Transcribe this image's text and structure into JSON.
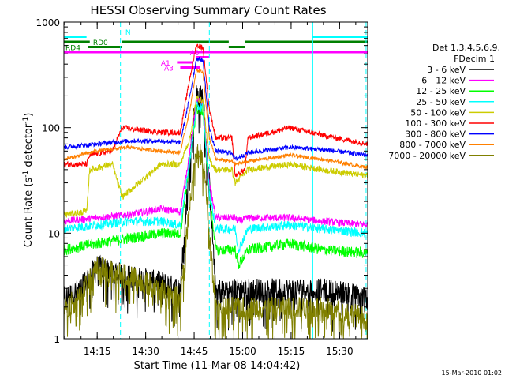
{
  "chart_data": {
    "type": "line",
    "title": "HESSI Observing Summary Count Rates",
    "xlabel": "Start Time (11-Mar-08 14:04:42)",
    "ylabel_main": "Count Rate (s",
    "ylabel_sup1": "-1",
    "ylabel_mid": " detector",
    "ylabel_sup2": "-1",
    "ylabel_end": ")",
    "y_scale": "log",
    "ylim": [
      1,
      1000
    ],
    "xlim_minutes": [
      0,
      94
    ],
    "y_ticks": [
      {
        "value": 1,
        "label": "1"
      },
      {
        "value": 10,
        "label": "10"
      },
      {
        "value": 100,
        "label": "100"
      },
      {
        "value": 1000,
        "label": "1000"
      }
    ],
    "x_ticks": [
      {
        "minute": 10.3,
        "label": "14:15"
      },
      {
        "minute": 25.3,
        "label": "14:30"
      },
      {
        "minute": 40.3,
        "label": "14:45"
      },
      {
        "minute": 55.3,
        "label": "15:00"
      },
      {
        "minute": 70.3,
        "label": "15:15"
      },
      {
        "minute": 85.3,
        "label": "15:30"
      }
    ],
    "legend": {
      "placement": "right",
      "header1": "Det 1,3,4,5,6,9,",
      "header2": "FDecim 1",
      "entries": [
        {
          "label": "3 - 6 keV",
          "color": "#000000"
        },
        {
          "label": "6 - 12 keV",
          "color": "#ff00ff"
        },
        {
          "label": "12 - 25 keV",
          "color": "#00ff00"
        },
        {
          "label": "25 - 50 keV",
          "color": "#00ffff"
        },
        {
          "label": "50 - 100 keV",
          "color": "#cccc00"
        },
        {
          "label": "100 - 300 keV",
          "color": "#ff0000"
        },
        {
          "label": "300 - 800 keV",
          "color": "#0000ff"
        },
        {
          "label": "800 - 7000 keV",
          "color": "#ff8000"
        },
        {
          "label": "7000 - 20000 keV",
          "color": "#808000"
        }
      ]
    },
    "series": [
      {
        "label": "3 - 6 keV",
        "color": "#000000",
        "noise": 0.5,
        "points": [
          [
            0,
            2.5
          ],
          [
            5,
            3
          ],
          [
            10,
            5
          ],
          [
            20,
            4
          ],
          [
            30,
            3.5
          ],
          [
            36,
            3
          ],
          [
            39,
            60
          ],
          [
            41,
            210
          ],
          [
            43,
            200
          ],
          [
            45,
            30
          ],
          [
            47,
            3
          ],
          [
            52,
            3
          ],
          [
            57,
            3
          ],
          [
            62,
            3
          ],
          [
            70,
            3
          ],
          [
            80,
            3
          ],
          [
            88,
            2.8
          ],
          [
            94,
            2.5
          ]
        ]
      },
      {
        "label": "6 - 12 keV",
        "color": "#ff00ff",
        "noise": 0.08,
        "points": [
          [
            0,
            13
          ],
          [
            10,
            14
          ],
          [
            20,
            15
          ],
          [
            30,
            17
          ],
          [
            36,
            16
          ],
          [
            39,
            60
          ],
          [
            41,
            180
          ],
          [
            43,
            175
          ],
          [
            45,
            30
          ],
          [
            47,
            14
          ],
          [
            53,
            14
          ],
          [
            54,
            13
          ],
          [
            57,
            14
          ],
          [
            70,
            14
          ],
          [
            80,
            13
          ],
          [
            94,
            12
          ]
        ]
      },
      {
        "label": "12 - 25 keV",
        "color": "#00ff00",
        "noise": 0.12,
        "points": [
          [
            0,
            7
          ],
          [
            10,
            8
          ],
          [
            20,
            9
          ],
          [
            30,
            10
          ],
          [
            36,
            10
          ],
          [
            39,
            50
          ],
          [
            41,
            150
          ],
          [
            43,
            145
          ],
          [
            45,
            25
          ],
          [
            47,
            7
          ],
          [
            53,
            7
          ],
          [
            54,
            5
          ],
          [
            57,
            7
          ],
          [
            70,
            8
          ],
          [
            80,
            7
          ],
          [
            94,
            6.5
          ]
        ]
      },
      {
        "label": "25 - 50 keV",
        "color": "#00ffff",
        "noise": 0.1,
        "points": [
          [
            0,
            11
          ],
          [
            10,
            12
          ],
          [
            20,
            13
          ],
          [
            30,
            13
          ],
          [
            36,
            12
          ],
          [
            39,
            50
          ],
          [
            41,
            160
          ],
          [
            43,
            155
          ],
          [
            45,
            25
          ],
          [
            47,
            11
          ],
          [
            53,
            11
          ],
          [
            54,
            7
          ],
          [
            57,
            11
          ],
          [
            70,
            12
          ],
          [
            80,
            11
          ],
          [
            94,
            10
          ]
        ]
      },
      {
        "label": "50 - 100 keV",
        "color": "#cccc00",
        "noise": 0.07,
        "points": [
          [
            0,
            15
          ],
          [
            7,
            16
          ],
          [
            8,
            40
          ],
          [
            15,
            45
          ],
          [
            18,
            22
          ],
          [
            30,
            45
          ],
          [
            36,
            45
          ],
          [
            39,
            80
          ],
          [
            41,
            190
          ],
          [
            43,
            180
          ],
          [
            45,
            50
          ],
          [
            47,
            40
          ],
          [
            52,
            40
          ],
          [
            53,
            30
          ],
          [
            57,
            40
          ],
          [
            70,
            45
          ],
          [
            80,
            40
          ],
          [
            94,
            35
          ]
        ]
      },
      {
        "label": "100 - 300 keV",
        "color": "#ff0000",
        "noise": 0.06,
        "points": [
          [
            0,
            45
          ],
          [
            7,
            45
          ],
          [
            8,
            55
          ],
          [
            15,
            60
          ],
          [
            18,
            100
          ],
          [
            30,
            90
          ],
          [
            36,
            90
          ],
          [
            39,
            300
          ],
          [
            41,
            600
          ],
          [
            43,
            580
          ],
          [
            45,
            150
          ],
          [
            47,
            80
          ],
          [
            52,
            80
          ],
          [
            53,
            35
          ],
          [
            56,
            40
          ],
          [
            57,
            80
          ],
          [
            70,
            100
          ],
          [
            80,
            85
          ],
          [
            94,
            70
          ]
        ]
      },
      {
        "label": "300 - 800 keV",
        "color": "#0000ff",
        "noise": 0.05,
        "points": [
          [
            0,
            65
          ],
          [
            10,
            70
          ],
          [
            20,
            75
          ],
          [
            30,
            75
          ],
          [
            36,
            72
          ],
          [
            39,
            200
          ],
          [
            41,
            450
          ],
          [
            43,
            440
          ],
          [
            45,
            100
          ],
          [
            47,
            60
          ],
          [
            52,
            58
          ],
          [
            53,
            50
          ],
          [
            57,
            58
          ],
          [
            70,
            65
          ],
          [
            80,
            62
          ],
          [
            94,
            55
          ]
        ]
      },
      {
        "label": "800 - 7000 keV",
        "color": "#ff8000",
        "noise": 0.04,
        "points": [
          [
            0,
            50
          ],
          [
            10,
            60
          ],
          [
            20,
            65
          ],
          [
            30,
            60
          ],
          [
            36,
            58
          ],
          [
            39,
            150
          ],
          [
            41,
            350
          ],
          [
            43,
            340
          ],
          [
            45,
            80
          ],
          [
            47,
            50
          ],
          [
            52,
            48
          ],
          [
            53,
            45
          ],
          [
            57,
            48
          ],
          [
            70,
            55
          ],
          [
            80,
            50
          ],
          [
            94,
            42
          ]
        ]
      },
      {
        "label": "7000 - 20000 keV",
        "color": "#808000",
        "noise": 0.5,
        "points": [
          [
            0,
            2
          ],
          [
            5,
            2.5
          ],
          [
            10,
            5
          ],
          [
            20,
            4
          ],
          [
            30,
            3
          ],
          [
            36,
            2.5
          ],
          [
            39,
            20
          ],
          [
            41,
            60
          ],
          [
            43,
            55
          ],
          [
            45,
            10
          ],
          [
            47,
            2
          ],
          [
            52,
            2
          ],
          [
            57,
            2
          ],
          [
            62,
            2
          ],
          [
            70,
            2
          ],
          [
            80,
            2
          ],
          [
            88,
            1.8
          ],
          [
            94,
            1.6
          ]
        ]
      }
    ],
    "vertical_lines": [
      {
        "minute": 17.5,
        "color": "#00ffff",
        "style": "dashed"
      },
      {
        "minute": 45,
        "color": "#00ffff",
        "style": "dashed"
      },
      {
        "minute": 77,
        "color": "#00ffff",
        "style": "solid"
      },
      {
        "minute": 93.5,
        "color": "#00ffff",
        "style": "dashed"
      }
    ],
    "flag_bars": [
      {
        "color": "#00ffff",
        "y": 1,
        "start": 0,
        "end": 7
      },
      {
        "color": "#00ffff",
        "y": 1,
        "start": 77,
        "end": 94
      },
      {
        "color": "#008000",
        "y": 2,
        "start": 0,
        "end": 8
      },
      {
        "color": "#008000",
        "y": 2,
        "start": 18,
        "end": 51
      },
      {
        "color": "#008000",
        "y": 2,
        "start": 56,
        "end": 94
      },
      {
        "color": "#008000",
        "y": 3,
        "start": 7.5,
        "end": 18
      },
      {
        "color": "#008000",
        "y": 3,
        "start": 51,
        "end": 56
      },
      {
        "color": "#ff00ff",
        "y": 4,
        "start": 0,
        "end": 94
      },
      {
        "color": "#ff00ff",
        "y": 5,
        "start": 41,
        "end": 45
      },
      {
        "color": "#ff00ff",
        "y": 6,
        "start": 35,
        "end": 40
      },
      {
        "color": "#ff00ff",
        "y": 7,
        "start": 36,
        "end": 42
      }
    ],
    "flag_labels": [
      {
        "text": "N",
        "color": "#00ffff",
        "minute": 19,
        "row": 0
      },
      {
        "text": "RD0",
        "color": "#008000",
        "minute": 9,
        "row": 2
      },
      {
        "text": "RD4",
        "color": "#008000",
        "minute": 0.5,
        "row": 3
      },
      {
        "text": "A0",
        "color": "#ff00ff",
        "minute": 39,
        "row": 4
      },
      {
        "text": "A1",
        "color": "#ff00ff",
        "minute": 30,
        "row": 6
      },
      {
        "text": "A3",
        "color": "#ff00ff",
        "minute": 31,
        "row": 7
      }
    ]
  },
  "footer": {
    "timestamp": "15-Mar-2010 01:02"
  }
}
